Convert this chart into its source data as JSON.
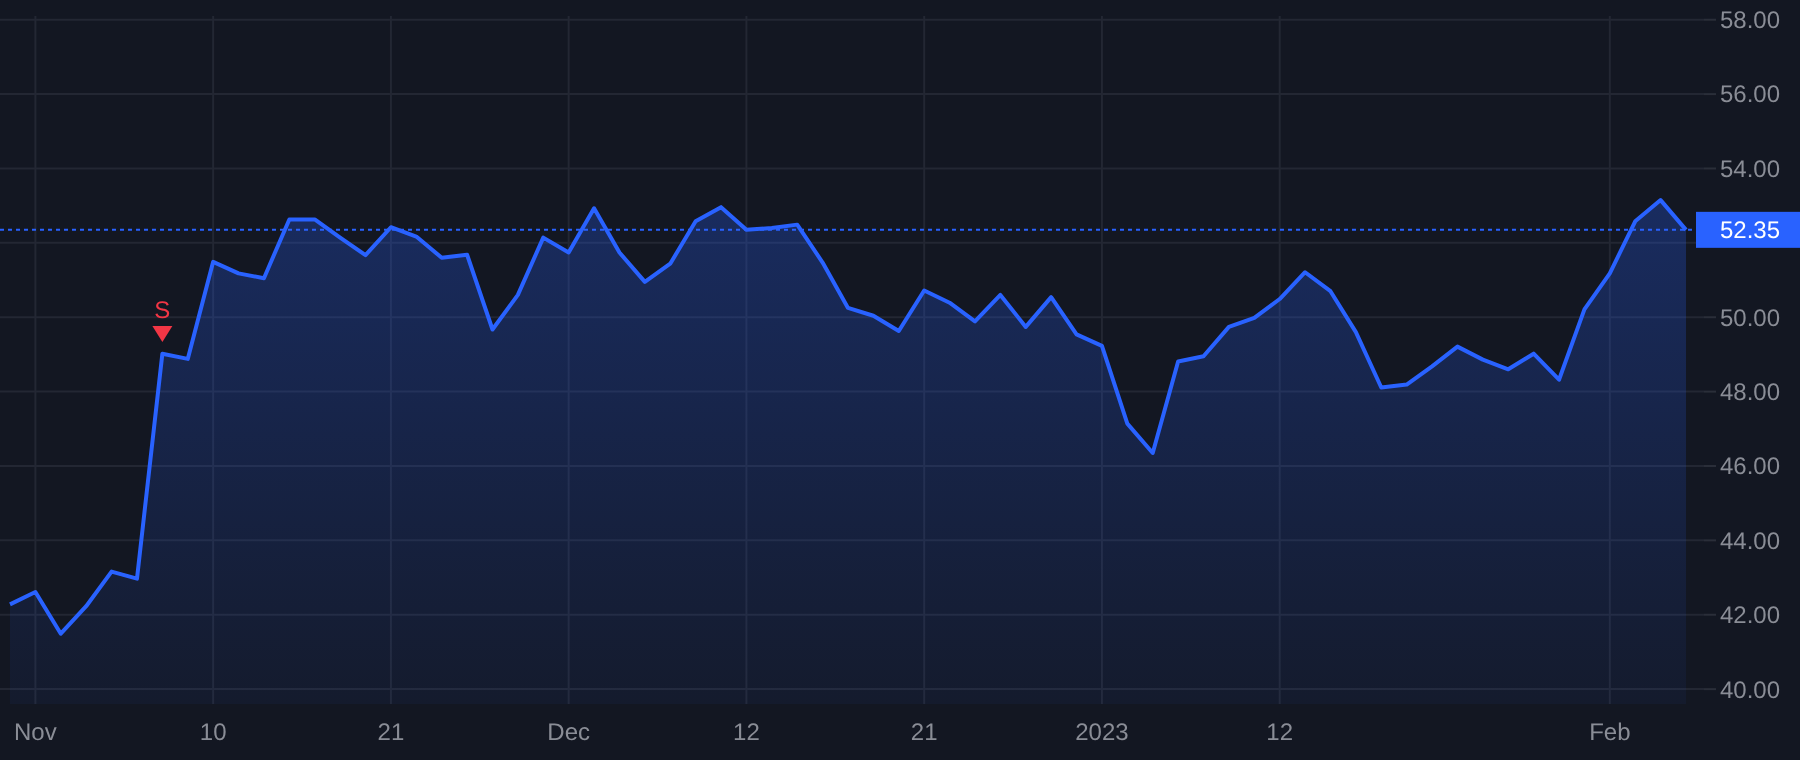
{
  "chart_data": {
    "type": "area",
    "categories": [
      null,
      "Nov",
      null,
      null,
      null,
      null,
      null,
      null,
      "10",
      null,
      null,
      null,
      null,
      null,
      null,
      "21",
      null,
      null,
      null,
      null,
      null,
      null,
      "Dec",
      null,
      null,
      null,
      null,
      null,
      null,
      "12",
      null,
      null,
      null,
      null,
      null,
      null,
      "21",
      null,
      null,
      null,
      null,
      null,
      null,
      "2023",
      null,
      null,
      null,
      null,
      null,
      null,
      "12",
      null,
      null,
      null,
      null,
      null,
      null,
      null,
      null,
      null,
      null,
      null,
      null,
      "Feb",
      null,
      null,
      null
    ],
    "series": [
      {
        "color": "#2962ff",
        "values": [
          42.28,
          42.61,
          41.49,
          42.23,
          43.16,
          42.97,
          49.02,
          48.88,
          51.49,
          51.18,
          51.05,
          52.63,
          52.63,
          52.14,
          51.67,
          52.42,
          52.17,
          51.6,
          51.68,
          49.67,
          50.6,
          52.14,
          51.74,
          52.93,
          51.74,
          50.95,
          51.44,
          52.58,
          52.96,
          52.35,
          52.4,
          52.49,
          51.47,
          50.25,
          50.04,
          49.63,
          50.72,
          50.39,
          49.89,
          50.6,
          49.74,
          50.54,
          49.54,
          49.23,
          47.14,
          46.35,
          48.81,
          48.95,
          49.74,
          49.98,
          50.49,
          51.21,
          50.7,
          49.6,
          48.11,
          48.19,
          48.68,
          49.21,
          48.86,
          48.6,
          49.02,
          48.32,
          50.21,
          51.18,
          52.58,
          53.15,
          52.35
        ]
      },
      {
        "type": "scatter",
        "color": "#f23645",
        "marker": "triangle",
        "values": [
          null,
          null,
          null,
          null,
          null,
          null,
          49.55,
          null,
          null,
          null,
          null,
          null,
          null,
          null,
          null,
          null,
          null,
          null,
          null,
          null,
          null,
          null,
          null,
          null,
          null,
          null,
          null,
          null,
          null,
          null,
          null,
          null,
          null,
          null,
          null,
          null,
          null,
          null,
          null,
          null,
          null,
          null,
          null,
          null,
          null,
          null,
          null,
          null,
          null,
          null,
          null,
          null,
          null,
          null,
          null,
          null,
          null,
          null,
          null,
          null,
          null,
          null,
          null,
          null,
          null,
          null,
          null
        ]
      }
    ],
    "annotations": [
      "S"
    ],
    "ylim": [
      39.6,
      58.1
    ],
    "yticks": [
      {
        "value": 40,
        "label": "40.00"
      },
      {
        "value": 42,
        "label": "42.00"
      },
      {
        "value": 44,
        "label": "44.00"
      },
      {
        "value": 46,
        "label": "46.00"
      },
      {
        "value": 48,
        "label": "48.00"
      },
      {
        "value": 50,
        "label": "50.00"
      },
      {
        "value": 52,
        "label": null
      },
      {
        "value": 54,
        "label": "54.00"
      },
      {
        "value": 56,
        "label": "56.00"
      },
      {
        "value": 58,
        "label": "58.00"
      }
    ],
    "ref_lines": [
      {
        "axis": "y",
        "value": 52.35,
        "label": "52.35",
        "color": "#2962ff",
        "line_style": "dotted"
      }
    ],
    "grid": true
  }
}
